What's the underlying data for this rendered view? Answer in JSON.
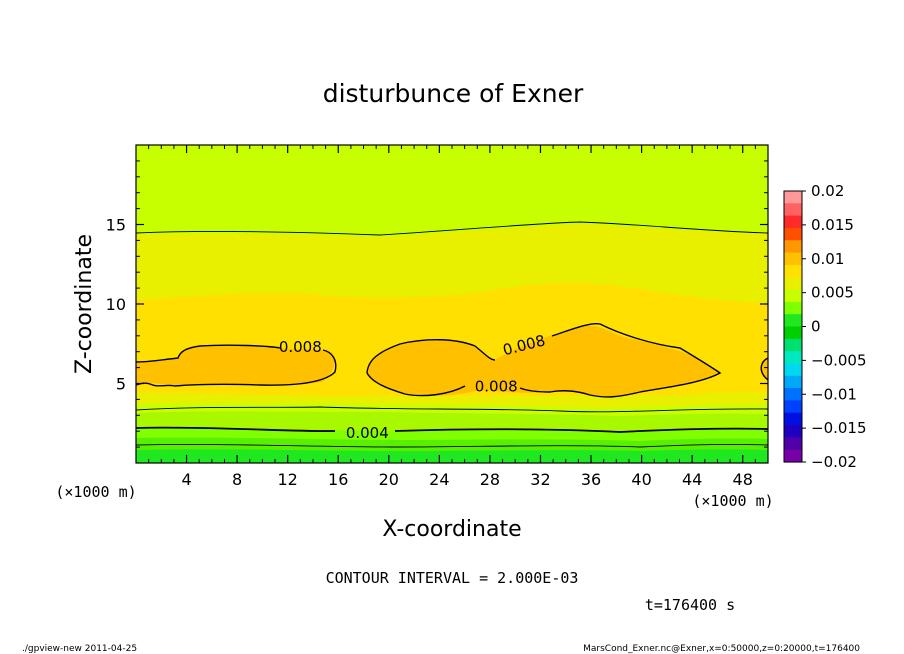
{
  "chart_data": {
    "type": "contour",
    "title": "disturbunce of Exner",
    "xlabel": "X-coordinate",
    "ylabel": "Z-coordinate",
    "x_unit_left": "(×1000 m)",
    "x_unit_right": "(×1000 m)",
    "xlim": [
      0,
      50
    ],
    "ylim": [
      0,
      20
    ],
    "x_ticks": [
      4,
      8,
      12,
      16,
      20,
      24,
      28,
      32,
      36,
      40,
      44,
      48
    ],
    "x_tick_labels": [
      "4",
      "8",
      "12",
      "16",
      "20",
      "24",
      "28",
      "32",
      "36",
      "40",
      "44",
      "48"
    ],
    "y_ticks": [
      5,
      10,
      15
    ],
    "y_tick_labels": [
      "5",
      "10",
      "15"
    ],
    "contour_interval_text": "CONTOUR INTERVAL = 2.000E-03",
    "time_text": "t=176400 s",
    "contour_labels": [
      {
        "text": "0.008",
        "x": 13,
        "z": 7.3,
        "angle": 0
      },
      {
        "text": "0.008",
        "x": 30.7,
        "z": 7.4,
        "angle": -14
      },
      {
        "text": "0.008",
        "x": 28.5,
        "z": 4.8,
        "angle": 0
      },
      {
        "text": "0.004",
        "x": 18.3,
        "z": 1.9,
        "angle": 0
      }
    ],
    "colorbar": {
      "levels": [
        0.02,
        0.015,
        0.01,
        0.005,
        0,
        -0.005,
        -0.01,
        -0.015,
        -0.02
      ],
      "labels": [
        "0.02",
        "0.015",
        "0.01",
        "0.005",
        "0",
        "−0.005",
        "−0.01",
        "−0.015",
        "−0.02"
      ],
      "colors_top_to_bottom": [
        "#ff9898",
        "#ff6262",
        "#ff2a2a",
        "#ff5000",
        "#ff9800",
        "#ffc000",
        "#ffe000",
        "#e8f000",
        "#c8ff00",
        "#80ff00",
        "#20e820",
        "#00d000",
        "#00e070",
        "#00e8c0",
        "#00d8f0",
        "#00a8f8",
        "#0070ff",
        "#0040ff",
        "#0010e0",
        "#2000c0",
        "#5000a8",
        "#7800a8"
      ]
    }
  },
  "footer": {
    "left": "./gpview-new   2011-04-25",
    "right": "MarsCond_Exner.nc@Exner,x=0:50000,z=0:20000,t=176400"
  }
}
